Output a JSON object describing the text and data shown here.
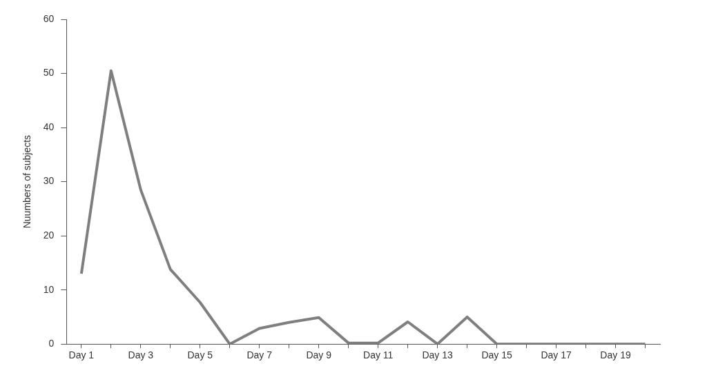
{
  "chart_data": {
    "type": "line",
    "ylabel": "Nuumbers of subjects",
    "categories": [
      "Day 1",
      null,
      "Day 3",
      null,
      "Day 5",
      null,
      "Day 7",
      null,
      "Day 9",
      null,
      "Day 11",
      null,
      "Day 13",
      null,
      "Day 15",
      null,
      "Day 17",
      null,
      "Day 19",
      null
    ],
    "series": [
      {
        "color": "#7f7f7f",
        "values": [
          13,
          50.5,
          28.5,
          13.8,
          7.7,
          0,
          2.9,
          4,
          4.9,
          0.2,
          0.2,
          4.1,
          0,
          5,
          0,
          0,
          0,
          0,
          0,
          0
        ]
      }
    ],
    "ylim": [
      0,
      60
    ],
    "yticks": [
      0,
      10,
      20,
      30,
      40,
      50,
      60
    ],
    "grid": false,
    "legend": false,
    "marker": "none",
    "line_style": "solid"
  }
}
